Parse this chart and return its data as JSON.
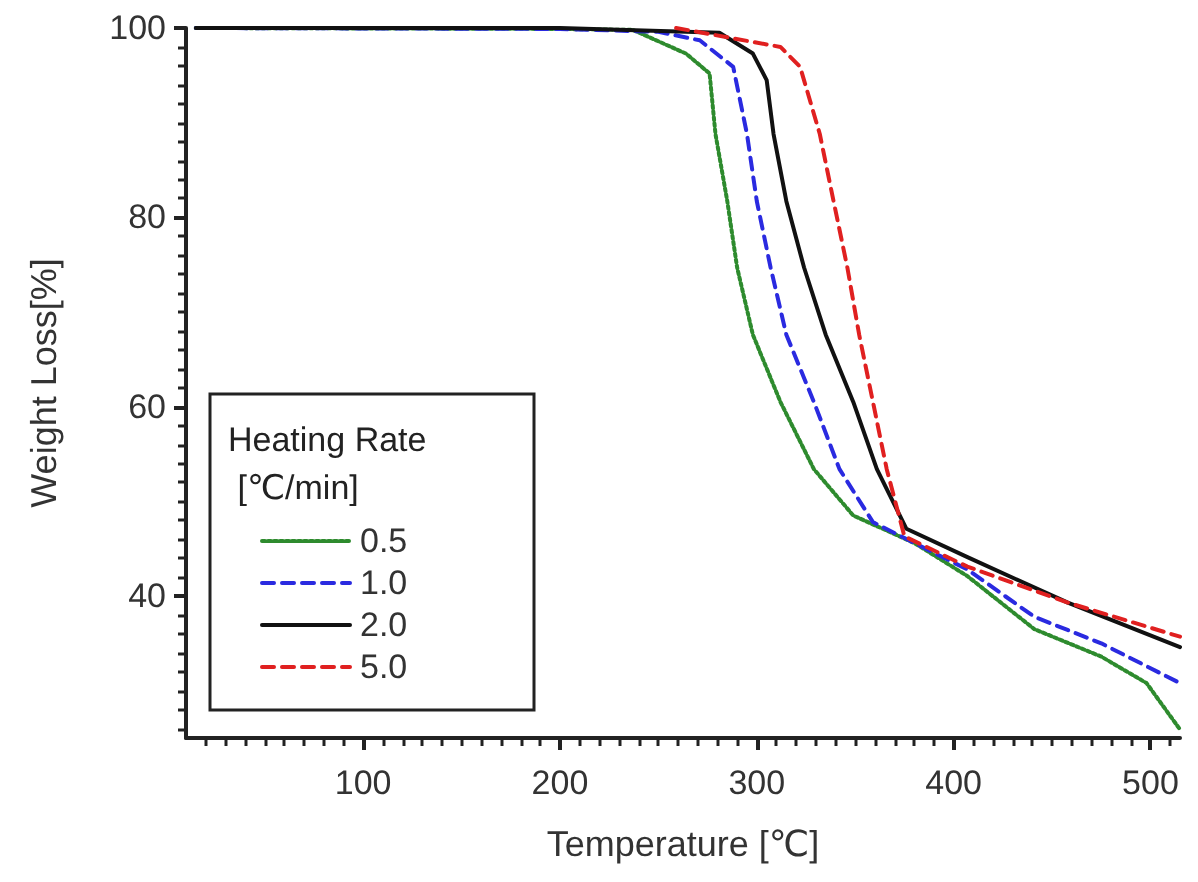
{
  "chart_data": {
    "type": "line",
    "xlabel": "Temperature [℃]",
    "ylabel": "Weight Loss[%]",
    "legend_title": "Heating Rate\n [℃/min]",
    "legend": "bottom left",
    "grid": false,
    "marker": "none",
    "xlim": [
      10,
      515
    ],
    "ylim": [
      25,
      100
    ],
    "xticks": [
      100,
      200,
      300,
      400,
      500
    ],
    "yticks": [
      40,
      60,
      80,
      100
    ],
    "series": [
      {
        "name": "0.5",
        "color": "#2e8b2e",
        "line_style": "dotted",
        "x": [
          15,
          200,
          237,
          264,
          276,
          279,
          285,
          290,
          298,
          312,
          329,
          349,
          380,
          407,
          441,
          475,
          498,
          515
        ],
        "values": [
          100,
          99.9,
          99.8,
          97.3,
          95.2,
          88.8,
          81.7,
          74.7,
          67.6,
          60.5,
          53.4,
          48.5,
          45.6,
          42.1,
          36.5,
          33.6,
          30.8,
          25.9
        ]
      },
      {
        "name": "1.0",
        "color": "#2a2ae0",
        "line_style": "dashed",
        "x": [
          15,
          200,
          250,
          271,
          288,
          295,
          300,
          307,
          315,
          329,
          342,
          359,
          380,
          407,
          441,
          475,
          515
        ],
        "values": [
          100,
          99.9,
          99.6,
          98.7,
          95.9,
          88.8,
          81.7,
          74.7,
          67.6,
          60.5,
          53.4,
          47.8,
          45.6,
          42.8,
          37.8,
          35,
          30.8
        ]
      },
      {
        "name": "2.0",
        "color": "#111111",
        "line_style": "solid",
        "x": [
          15,
          100,
          200,
          281,
          298,
          305,
          308.5,
          315,
          324,
          335,
          349,
          361,
          376,
          407,
          458,
          515
        ],
        "values": [
          100,
          100,
          100,
          99.5,
          97.3,
          94.5,
          88.8,
          81.7,
          74.7,
          67.6,
          60.5,
          53.4,
          47.1,
          44.1,
          39.3,
          34.6
        ]
      },
      {
        "name": "5.0",
        "color": "#e02020",
        "line_style": "dashed",
        "x": [
          259,
          312,
          322,
          332,
          339,
          346,
          352,
          359,
          366,
          375,
          407,
          458,
          515
        ],
        "values": [
          100,
          98,
          95.9,
          88.8,
          81.7,
          74.7,
          67.6,
          60.5,
          53.4,
          46.3,
          43.1,
          39.3,
          35.7
        ]
      }
    ]
  }
}
